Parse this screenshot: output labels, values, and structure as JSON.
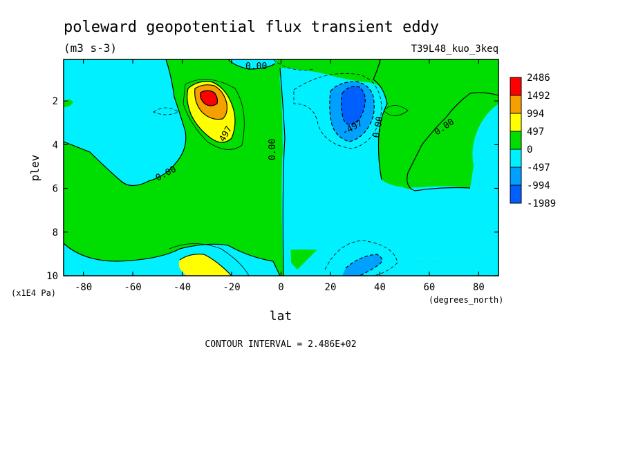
{
  "chart_data": {
    "type": "contour",
    "title": "poleward geopotential flux transient eddy",
    "units": "(m3 s-3)",
    "experiment": "T39L48_kuo_3keq",
    "xlabel": "lat",
    "xunits": "(degrees_north)",
    "ylabel": "plev",
    "yunits": "(x1E4 Pa)",
    "xlim": [
      -88,
      88
    ],
    "ylim": [
      10,
      0.1
    ],
    "xticks": [
      -80,
      -60,
      -40,
      -20,
      0,
      20,
      40,
      60,
      80
    ],
    "xtick_labels": [
      "-80",
      "-60",
      "-40",
      "-20",
      "0",
      "20",
      "40",
      "60",
      "80"
    ],
    "yticks": [
      2,
      4,
      6,
      8,
      10
    ],
    "ytick_labels": [
      "2",
      "4",
      "6",
      "8",
      "10"
    ],
    "contour_interval_text": "CONTOUR INTERVAL = 2.486E+02",
    "contour_labels": [
      "0.00",
      "0.00",
      "0.00",
      "0.00",
      "0.00",
      "497",
      "-497"
    ],
    "colorbar": {
      "levels": [
        2486,
        1492,
        994,
        497,
        0,
        -497,
        -994,
        -1989
      ],
      "labels": [
        "2486",
        "1492",
        "994",
        "497",
        "0",
        "-497",
        "-994",
        "-1989"
      ],
      "colors": [
        "#ff0000",
        "#f5a000",
        "#ffff00",
        "#00dd00",
        "#00f0ff",
        "#00a0ff",
        "#0060ff"
      ]
    },
    "features": [
      {
        "name": "positive maximum",
        "lat": -30,
        "plev": 2.0,
        "value": 2486
      },
      {
        "name": "negative minimum",
        "lat": 30,
        "plev": 2.0,
        "value": -1989
      },
      {
        "name": "lower positive lobe",
        "lat": -28,
        "plev": 9.7,
        "value": 994
      },
      {
        "name": "lower negative lobe",
        "lat": 30,
        "plev": 9.5,
        "value": -994
      }
    ]
  }
}
